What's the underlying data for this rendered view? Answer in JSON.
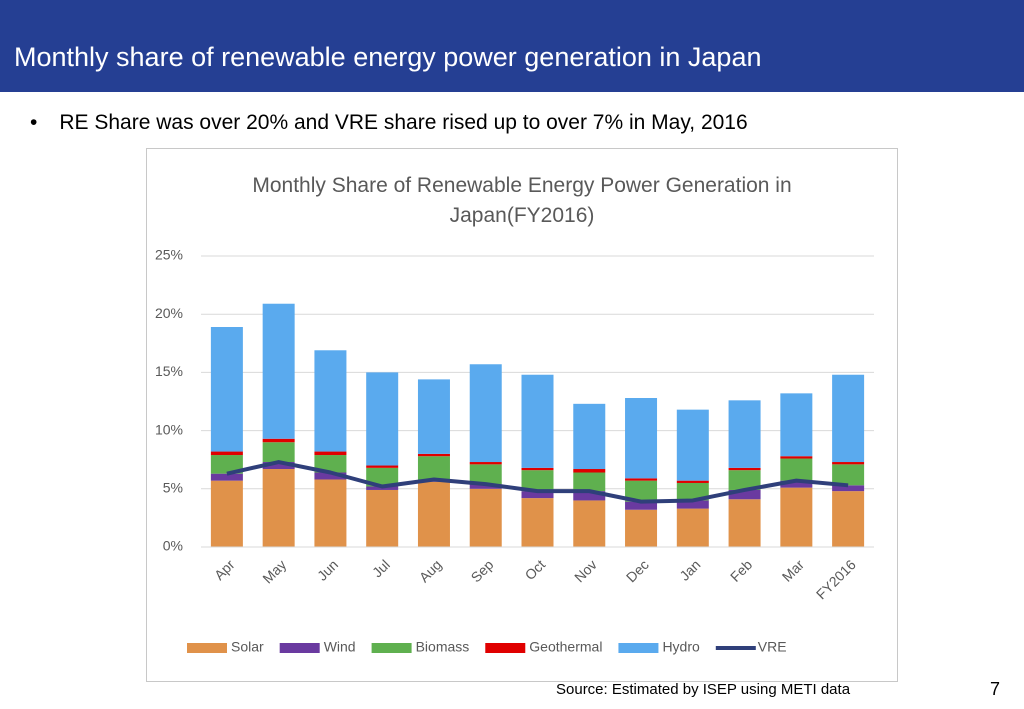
{
  "header": {
    "title": "Monthly share of renewable energy power generation in Japan"
  },
  "bullet": {
    "marker": "•",
    "text": "RE Share was over 20% and VRE share rised up to over 7% in May, 2016"
  },
  "footer": {
    "source": "Source: Estimated by ISEP using METI data",
    "page": "7"
  },
  "chart_data": {
    "type": "bar",
    "stacked": true,
    "title": "Monthly Share of Renewable Energy Power Generation in Japan(FY2016)",
    "categories": [
      "Apr",
      "May",
      "Jun",
      "Jul",
      "Aug",
      "Sep",
      "Oct",
      "Nov",
      "Dec",
      "Jan",
      "Feb",
      "Mar",
      "FY2016"
    ],
    "series": [
      {
        "name": "Solar",
        "color": "#e0924a",
        "values": [
          5.7,
          6.7,
          5.8,
          4.9,
          5.6,
          5.0,
          4.2,
          4.0,
          3.2,
          3.3,
          4.1,
          5.1,
          4.8
        ]
      },
      {
        "name": "Wind",
        "color": "#6a3aa0",
        "values": [
          0.6,
          0.6,
          0.6,
          0.3,
          0.2,
          0.4,
          0.6,
          0.8,
          0.7,
          0.7,
          0.8,
          0.6,
          0.5
        ]
      },
      {
        "name": "Biomass",
        "color": "#5fb04f",
        "values": [
          1.6,
          1.7,
          1.5,
          1.6,
          2.0,
          1.7,
          1.8,
          1.6,
          1.8,
          1.5,
          1.7,
          1.9,
          1.8
        ]
      },
      {
        "name": "Geothermal",
        "color": "#e00000",
        "values": [
          0.3,
          0.3,
          0.3,
          0.2,
          0.2,
          0.2,
          0.2,
          0.3,
          0.2,
          0.2,
          0.2,
          0.2,
          0.2
        ]
      },
      {
        "name": "Hydro",
        "color": "#5aaaee",
        "values": [
          10.7,
          11.6,
          8.7,
          8.0,
          6.4,
          8.4,
          8.0,
          5.6,
          6.9,
          6.1,
          5.8,
          5.4,
          7.5
        ]
      },
      {
        "name": "VRE",
        "color": "#2f3f7a",
        "type": "line",
        "values": [
          6.3,
          7.3,
          6.4,
          5.2,
          5.8,
          5.4,
          4.8,
          4.8,
          3.9,
          4.0,
          4.9,
          5.7,
          5.3
        ]
      }
    ],
    "ylim": [
      0,
      25
    ],
    "yticks": [
      {
        "value": 0,
        "label": "0%"
      },
      {
        "value": 5,
        "label": "5%"
      },
      {
        "value": 10,
        "label": "10%"
      },
      {
        "value": 15,
        "label": "15%"
      },
      {
        "value": 20,
        "label": "20%"
      },
      {
        "value": 25,
        "label": "25%"
      }
    ],
    "grid": true,
    "legend": "bottom"
  }
}
